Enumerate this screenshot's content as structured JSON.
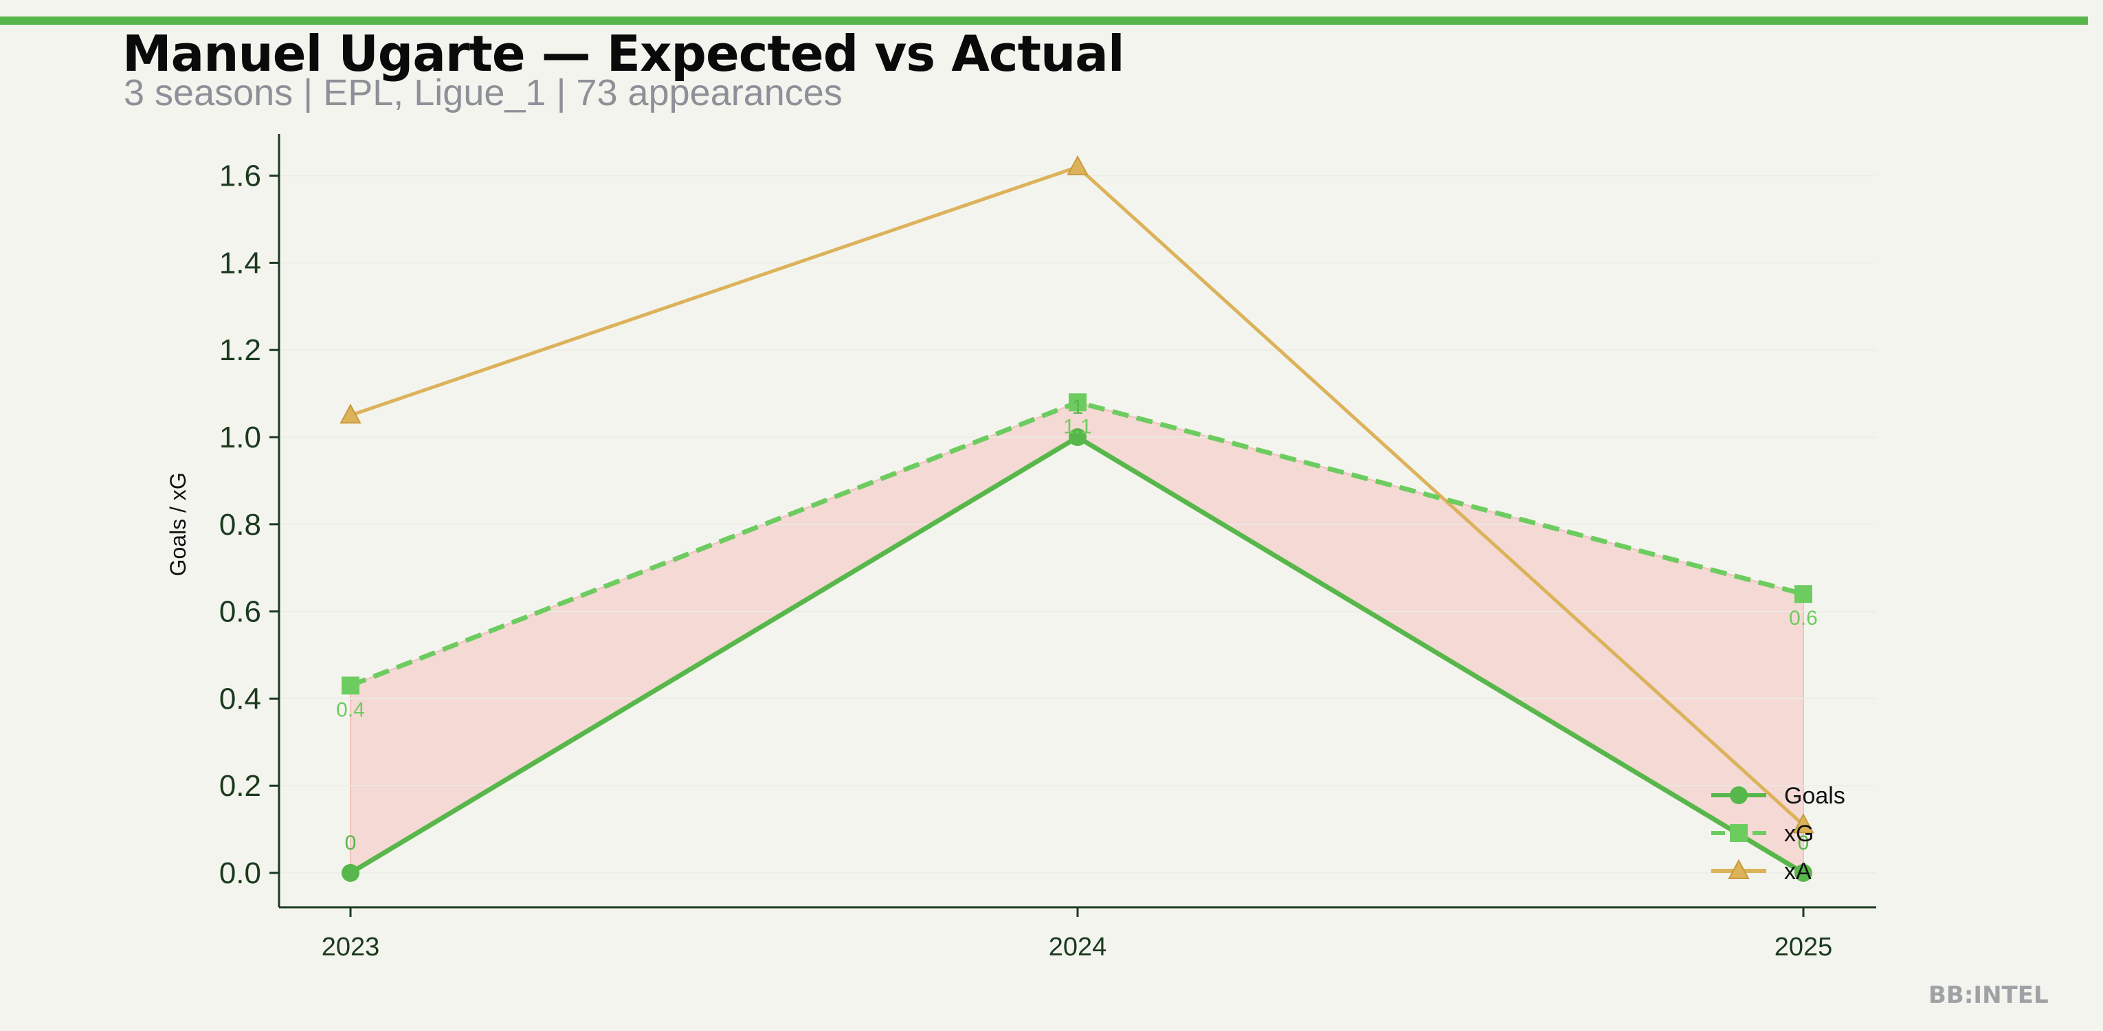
{
  "header": {
    "title": "Manuel Ugarte — Expected vs Actual",
    "subtitle": "3 seasons | EPL, Ligue_1 | 73 appearances"
  },
  "watermark": "BB:INTEL",
  "colors": {
    "accent": "#58b74a",
    "goals": "#58b74a",
    "xg": "#6dcc5f",
    "xa": "#dcb25a",
    "gap_fill": "#f4d4d0",
    "axis": "#1b3a1e"
  },
  "chart_data": {
    "type": "line",
    "categories": [
      "2023",
      "2024",
      "2025"
    ],
    "ylabel": "Goals / xG",
    "ylim": [
      -0.08,
      1.7
    ],
    "yticks": [
      "0.0",
      "0.2",
      "0.4",
      "0.6",
      "0.8",
      "1.0",
      "1.2",
      "1.4",
      "1.6"
    ],
    "grid": false,
    "legend_position": "lower-right",
    "series": [
      {
        "name": "Goals",
        "key": "goals",
        "values": [
          0,
          1,
          0
        ],
        "labels": [
          "0",
          "1",
          "0"
        ],
        "style": "solid",
        "marker": "circle"
      },
      {
        "name": "xG",
        "key": "xg",
        "values": [
          0.43,
          1.08,
          0.64
        ],
        "labels": [
          "0.4",
          "1.1",
          "0.6"
        ],
        "style": "dashed",
        "marker": "square"
      },
      {
        "name": "xA",
        "key": "xa",
        "values": [
          1.05,
          1.62,
          0.11
        ],
        "labels": [
          "",
          "",
          ""
        ],
        "style": "solid",
        "marker": "triangle"
      }
    ]
  }
}
